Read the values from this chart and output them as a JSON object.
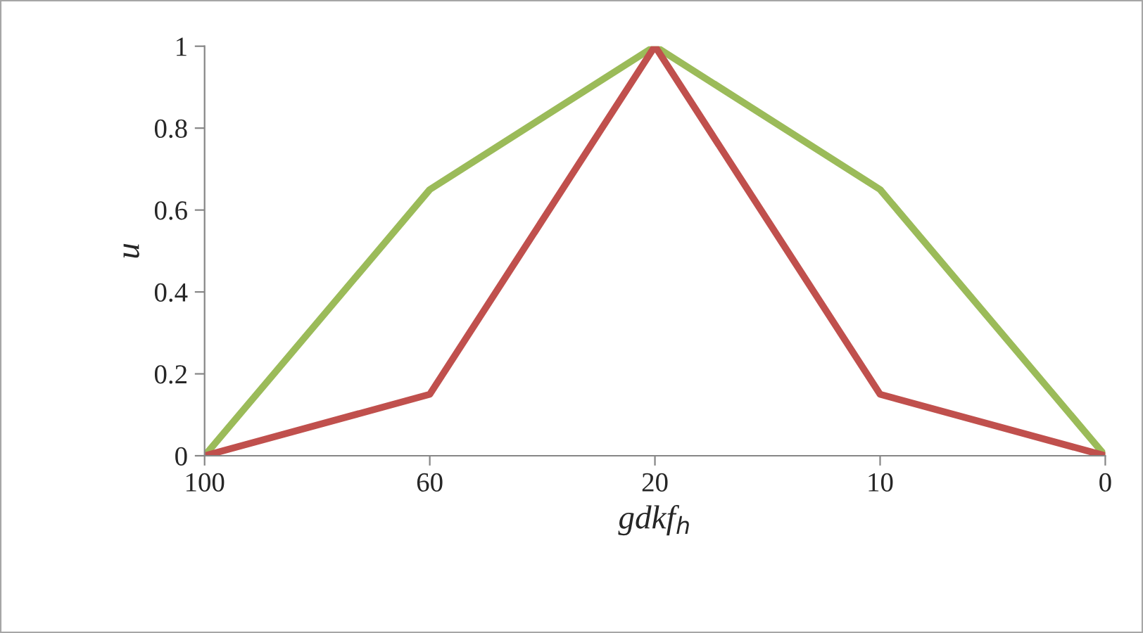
{
  "chart_data": {
    "type": "line",
    "xlabel": "gdkf$_{h}$",
    "ylabel": "u",
    "categories": [
      "100",
      "60",
      "20",
      "10",
      "0"
    ],
    "series": [
      {
        "color": "#9bbb59",
        "values": [
          0,
          0.65,
          1,
          0.65,
          0
        ]
      },
      {
        "color": "#c0504d",
        "values": [
          0,
          0.15,
          1,
          0.15,
          0
        ]
      }
    ],
    "ylim": [
      0,
      1
    ],
    "yticks": [
      0,
      0.2,
      0.4,
      0.6,
      0.8,
      1
    ]
  }
}
